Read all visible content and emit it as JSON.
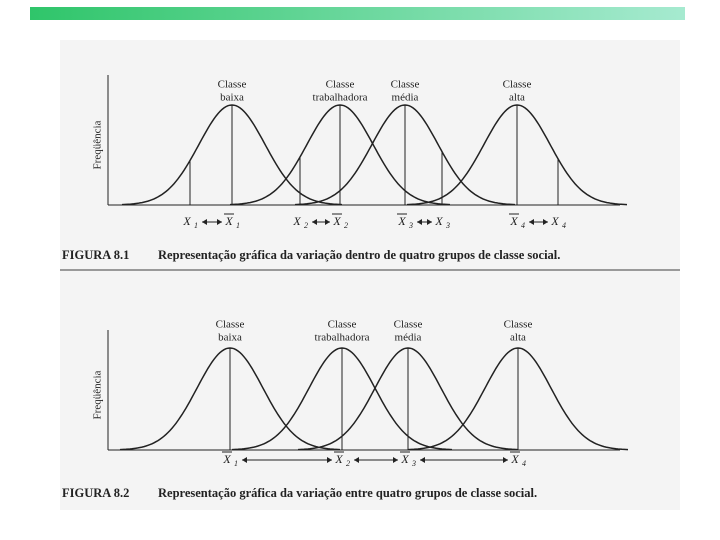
{
  "figures": [
    {
      "y_label": "Freqüência",
      "groups": [
        {
          "lines": [
            "Classe",
            "baixa"
          ]
        },
        {
          "lines": [
            "Classe",
            "trabalhadora"
          ]
        },
        {
          "lines": [
            "Classe",
            "média"
          ]
        },
        {
          "lines": [
            "Classe",
            "alta"
          ]
        }
      ],
      "x_labels": [
        {
          "letter": "X",
          "sub": "1",
          "bar": false
        },
        {
          "letter": "X",
          "sub": "1",
          "bar": true
        },
        {
          "letter": "X",
          "sub": "2",
          "bar": false
        },
        {
          "letter": "X",
          "sub": "2",
          "bar": true
        },
        {
          "letter": "X",
          "sub": "3",
          "bar": true
        },
        {
          "letter": "X",
          "sub": "3",
          "bar": false
        },
        {
          "letter": "X",
          "sub": "4",
          "bar": true
        },
        {
          "letter": "X",
          "sub": "4",
          "bar": false
        }
      ],
      "caption_number": "FIGURA 8.1",
      "caption": "Representação gráfica da variação dentro de quatro grupos de classe social."
    },
    {
      "y_label": "Freqüência",
      "groups": [
        {
          "lines": [
            "Classe",
            "baixa"
          ]
        },
        {
          "lines": [
            "Classe",
            "trabalhadora"
          ]
        },
        {
          "lines": [
            "Classe",
            "média"
          ]
        },
        {
          "lines": [
            "Classe",
            "alta"
          ]
        }
      ],
      "x_labels": [
        {
          "letter": "X",
          "sub": "1",
          "bar": true
        },
        {
          "letter": "X",
          "sub": "2",
          "bar": true
        },
        {
          "letter": "X",
          "sub": "3",
          "bar": true
        },
        {
          "letter": "X",
          "sub": "4",
          "bar": true
        }
      ],
      "caption_number": "FIGURA 8.2",
      "caption": "Representação gráfica da variação entre quatro grupos de classe social."
    }
  ]
}
